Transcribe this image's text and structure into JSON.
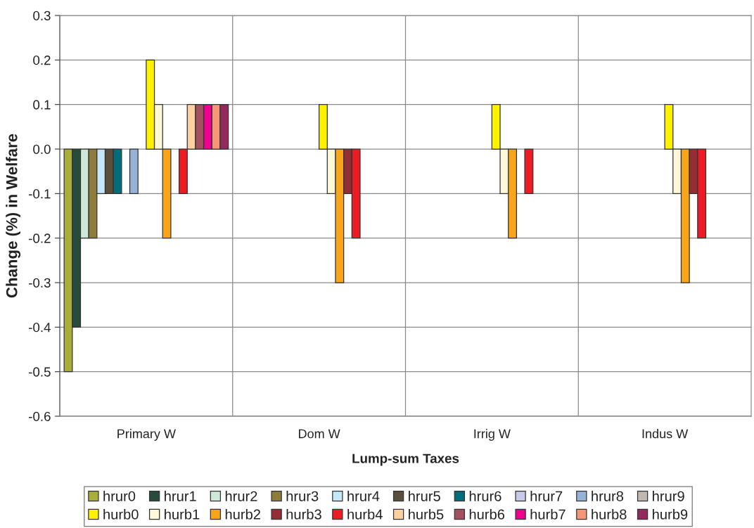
{
  "chart_data": {
    "type": "bar",
    "categories": [
      "Primary W",
      "Dom W",
      "Irrig W",
      "Indus W"
    ],
    "series": [
      {
        "name": "hrur0",
        "color": "#a8ae3a",
        "values": [
          -0.5,
          null,
          null,
          null
        ]
      },
      {
        "name": "hrur1",
        "color": "#264d3c",
        "values": [
          -0.4,
          null,
          null,
          null
        ]
      },
      {
        "name": "hrur2",
        "color": "#cde8d8",
        "values": [
          -0.2,
          null,
          null,
          null
        ]
      },
      {
        "name": "hrur3",
        "color": "#8f7c3a",
        "values": [
          -0.2,
          null,
          null,
          null
        ]
      },
      {
        "name": "hrur4",
        "color": "#c5e8f8",
        "values": [
          -0.1,
          null,
          null,
          null
        ]
      },
      {
        "name": "hrur5",
        "color": "#5a4f3c",
        "values": [
          -0.1,
          null,
          null,
          null
        ]
      },
      {
        "name": "hrur6",
        "color": "#006e7a",
        "values": [
          -0.1,
          null,
          null,
          null
        ]
      },
      {
        "name": "hrur7",
        "color": "#c8c8e8",
        "values": [
          null,
          null,
          null,
          null
        ]
      },
      {
        "name": "hrur8",
        "color": "#95b3d7",
        "values": [
          -0.1,
          null,
          null,
          null
        ]
      },
      {
        "name": "hrur9",
        "color": "#c0b8b0",
        "values": [
          null,
          null,
          null,
          null
        ]
      },
      {
        "name": "hurb0",
        "color": "#fff200",
        "values": [
          0.2,
          0.1,
          0.1,
          0.1
        ]
      },
      {
        "name": "hurb1",
        "color": "#fff9d9",
        "values": [
          0.1,
          -0.1,
          -0.1,
          -0.1
        ]
      },
      {
        "name": "hurb2",
        "color": "#f8a51c",
        "values": [
          -0.2,
          -0.3,
          -0.2,
          -0.3
        ]
      },
      {
        "name": "hurb3",
        "color": "#952d35",
        "values": [
          null,
          -0.1,
          null,
          -0.1
        ]
      },
      {
        "name": "hurb4",
        "color": "#ed1c24",
        "values": [
          -0.1,
          -0.2,
          -0.1,
          -0.2
        ]
      },
      {
        "name": "hurb5",
        "color": "#fdd0a2",
        "values": [
          0.1,
          null,
          null,
          null
        ]
      },
      {
        "name": "hurb6",
        "color": "#a35060",
        "values": [
          0.1,
          null,
          null,
          null
        ]
      },
      {
        "name": "hurb7",
        "color": "#ec008c",
        "values": [
          0.1,
          null,
          null,
          null
        ]
      },
      {
        "name": "hurb8",
        "color": "#f69679",
        "values": [
          0.1,
          null,
          null,
          null
        ]
      },
      {
        "name": "hurb9",
        "color": "#922a5c",
        "values": [
          0.1,
          null,
          null,
          null
        ]
      }
    ],
    "xlabel": "Lump-sum Taxes",
    "ylabel": "Change (%) in Welfare",
    "ylim": [
      -0.6,
      0.3
    ],
    "yticks": [
      -0.6,
      -0.5,
      -0.4,
      -0.3,
      -0.2,
      -0.1,
      {
        "value": 0,
        "label": "0.0"
      },
      0.1,
      0.2,
      0.3
    ],
    "grid": true,
    "legend": "bottom"
  }
}
